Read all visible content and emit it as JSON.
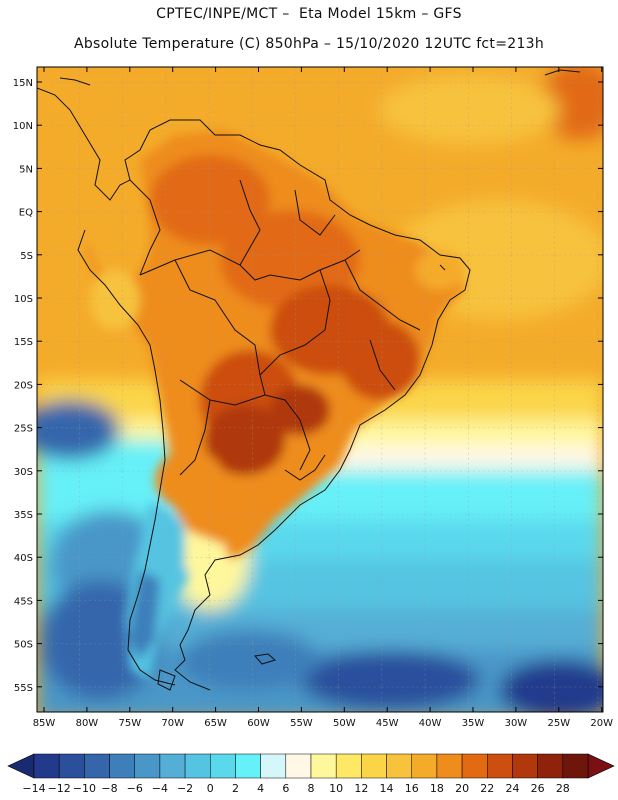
{
  "header": {
    "line1": "CPTEC/INPE/MCT –  Eta Model 15km – GFS",
    "line2": "Absolute Temperature (C) 850hPa – 15/10/2020 12UTC fct=213h"
  },
  "lat_ticks": [
    "15N",
    "10N",
    "5N",
    "EQ",
    "5S",
    "10S",
    "15S",
    "20S",
    "25S",
    "30S",
    "35S",
    "40S",
    "45S",
    "50S",
    "55S"
  ],
  "lon_ticks": [
    "85W",
    "80W",
    "75W",
    "70W",
    "65W",
    "60W",
    "55W",
    "50W",
    "45W",
    "40W",
    "35W",
    "30W",
    "25W",
    "20W"
  ],
  "colorbar": {
    "labels": [
      "-14",
      "-12",
      "-10",
      "-8",
      "-6",
      "-4",
      "-2",
      "0",
      "2",
      "4",
      "6",
      "8",
      "10",
      "12",
      "14",
      "16",
      "18",
      "20",
      "22",
      "24",
      "26",
      "28"
    ],
    "colors": [
      "#223a8c",
      "#2c4f9c",
      "#3566ac",
      "#3d7fba",
      "#4897c8",
      "#55aed6",
      "#55c4e2",
      "#5ad8ec",
      "#66f0f8",
      "#d6f7fa",
      "#fff8e6",
      "#fff79c",
      "#ffe866",
      "#fbd548",
      "#f7c23c",
      "#f4ab2a",
      "#ee8c1c",
      "#e26a12",
      "#cc4e10",
      "#b0380c",
      "#8e220a",
      "#6e160a"
    ],
    "low_color": "#1a2a70",
    "high_color": "#7a0f14"
  }
}
